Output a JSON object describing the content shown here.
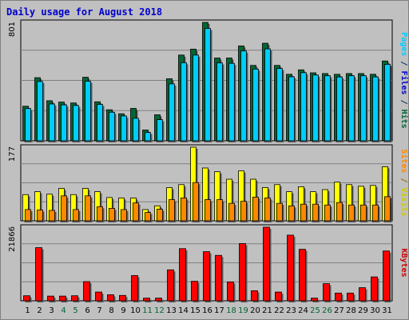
{
  "chart_data": {
    "type": "bar",
    "title": "Daily usage for August 2018",
    "categories": [
      "1",
      "2",
      "3",
      "4",
      "5",
      "6",
      "7",
      "8",
      "9",
      "10",
      "11",
      "12",
      "13",
      "14",
      "15",
      "16",
      "17",
      "18",
      "19",
      "20",
      "21",
      "22",
      "23",
      "24",
      "25",
      "26",
      "27",
      "28",
      "29",
      "30",
      "31"
    ],
    "weekend_days": [
      "4",
      "5",
      "11",
      "12",
      "18",
      "19",
      "25",
      "26"
    ],
    "colors": {
      "background": "#c0c0c0",
      "frame": "#808080",
      "gridline": "#808080",
      "title": "#0000cc",
      "tick": "#000000",
      "weekend_tick": "#006633",
      "hits": "#006633",
      "files": "#00ccff",
      "pages": "#0066cc",
      "visits": "#ffff00",
      "sites": "#ff8800",
      "kbytes": "#ff0000"
    },
    "panels": [
      {
        "id": "hits-files-pages",
        "axis_max_label": "801",
        "ylim": [
          0,
          801
        ],
        "side_label_parts": [
          {
            "text": "Pages",
            "color": "#00ccff"
          },
          {
            "text": " / ",
            "color": "#003366"
          },
          {
            "text": "Files",
            "color": "#0000cc"
          },
          {
            "text": " / ",
            "color": "#003366"
          },
          {
            "text": "Hits",
            "color": "#006633"
          }
        ],
        "series": [
          {
            "name": "Hits",
            "values": [
              234,
              427,
              271,
              262,
              256,
              430,
              264,
              210,
              183,
              219,
              73,
              176,
              420,
              580,
              620,
              801,
              560,
              560,
              642,
              510,
              660,
              510,
              450,
              480,
              460,
              455,
              450,
              455,
              455,
              450,
              540
            ]
          },
          {
            "name": "Files",
            "values": [
              218,
              401,
              249,
              243,
              239,
              403,
              246,
              193,
              168,
              152,
              56,
              143,
              385,
              528,
              580,
              760,
              527,
              524,
              608,
              485,
              622,
              489,
              433,
              461,
              445,
              440,
              432,
              440,
              440,
              432,
              517
            ]
          }
        ]
      },
      {
        "id": "visits-sites",
        "axis_max_label": "177",
        "ylim": [
          0,
          177
        ],
        "side_label_parts": [
          {
            "text": "Sites",
            "color": "#ff8800"
          },
          {
            "text": " / ",
            "color": "#996600"
          },
          {
            "text": "Visits",
            "color": "#cccc00"
          }
        ],
        "series": [
          {
            "name": "Visits",
            "values": [
              63,
              70,
              64,
              78,
              63,
              78,
              70,
              56,
              55,
              55,
              27,
              36,
              80,
              87,
              177,
              127,
              118,
              100,
              120,
              100,
              80,
              87,
              70,
              82,
              70,
              75,
              93,
              87,
              83,
              85,
              130
            ]
          },
          {
            "name": "Sites",
            "values": [
              27,
              26,
              25,
              60,
              27,
              60,
              34,
              30,
              27,
              43,
              20,
              28,
              51,
              55,
              92,
              51,
              51,
              42,
              47,
              57,
              55,
              42,
              36,
              40,
              40,
              38,
              44,
              38,
              38,
              38,
              58
            ]
          }
        ]
      },
      {
        "id": "kbytes",
        "axis_max_label": "21866",
        "ylim": [
          0,
          21866
        ],
        "side_label_parts": [
          {
            "text": "KBytes",
            "color": "#cc0000"
          }
        ],
        "series": [
          {
            "name": "KBytes",
            "values": [
              1500,
              15800,
              1400,
              1400,
              1500,
              5700,
              2600,
              1800,
              1600,
              7500,
              800,
              800,
              9200,
              15500,
              5800,
              14600,
              13500,
              5600,
              17000,
              3000,
              21866,
              2600,
              19500,
              15300,
              800,
              5100,
              2300,
              2300,
              3900,
              7100,
              14800
            ]
          }
        ]
      }
    ]
  }
}
